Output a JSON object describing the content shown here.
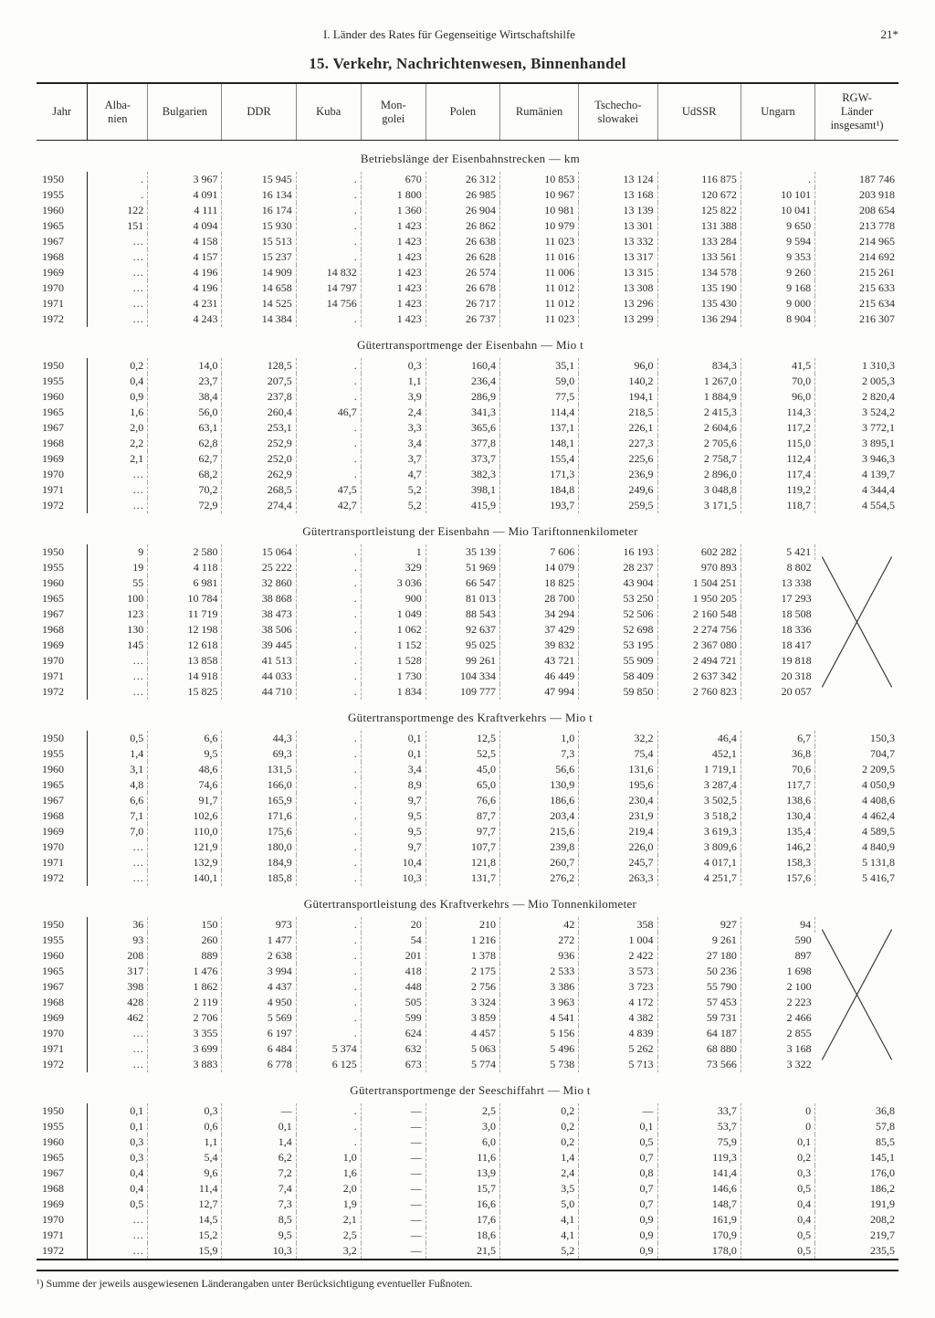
{
  "page_header_center": "I. Länder des Rates für Gegenseitige Wirtschaftshilfe",
  "page_number": "21*",
  "title": "15. Verkehr, Nachrichtenwesen, Binnenhandel",
  "columns": [
    "Jahr",
    "Alba-\nnien",
    "Bulgarien",
    "DDR",
    "Kuba",
    "Mon-\ngolei",
    "Polen",
    "Rumänien",
    "Tschecho-\nslowakei",
    "UdSSR",
    "Ungarn",
    "RGW-\nLänder\ninsgesamt¹)"
  ],
  "col_widths_pct": [
    5.5,
    6.5,
    8,
    8,
    7,
    7,
    8,
    8.5,
    8.5,
    9,
    8,
    9
  ],
  "years": [
    "1950",
    "1955",
    "1960",
    "1965",
    "1967",
    "1968",
    "1969",
    "1970",
    "1971",
    "1972"
  ],
  "footnote": "¹) Summe der jeweils ausgewiesenen Länderangaben unter Berücksichtigung eventueller Fußnoten.",
  "sections": [
    {
      "title": "Betriebslänge der Eisenbahnstrecken — km",
      "last_col_x": false,
      "rows": [
        [
          ".",
          "3 967",
          "15 945",
          ".",
          "670",
          "26 312",
          "10 853",
          "13 124",
          "116 875",
          ".",
          "187 746"
        ],
        [
          ".",
          "4 091",
          "16 134",
          ".",
          "1 800",
          "26 985",
          "10 967",
          "13 168",
          "120 672",
          "10 101",
          "203 918"
        ],
        [
          "122",
          "4 111",
          "16 174",
          ".",
          "1 360",
          "26 904",
          "10 981",
          "13 139",
          "125 822",
          "10 041",
          "208 654"
        ],
        [
          "151",
          "4 094",
          "15 930",
          ".",
          "1 423",
          "26 862",
          "10 979",
          "13 301",
          "131 388",
          "9 650",
          "213 778"
        ],
        [
          "…",
          "4 158",
          "15 513",
          ".",
          "1 423",
          "26 638",
          "11 023",
          "13 332",
          "133 284",
          "9 594",
          "214 965"
        ],
        [
          "…",
          "4 157",
          "15 237",
          ".",
          "1 423",
          "26 628",
          "11 016",
          "13 317",
          "133 561",
          "9 353",
          "214 692"
        ],
        [
          "…",
          "4 196",
          "14 909",
          "14 832",
          "1 423",
          "26 574",
          "11 006",
          "13 315",
          "134 578",
          "9 260",
          "215 261"
        ],
        [
          "…",
          "4 196",
          "14 658",
          "14 797",
          "1 423",
          "26 678",
          "11 012",
          "13 308",
          "135 190",
          "9 168",
          "215 633"
        ],
        [
          "…",
          "4 231",
          "14 525",
          "14 756",
          "1 423",
          "26 717",
          "11 012",
          "13 296",
          "135 430",
          "9 000",
          "215 634"
        ],
        [
          "…",
          "4 243",
          "14 384",
          ".",
          "1 423",
          "26 737",
          "11 023",
          "13 299",
          "136 294",
          "8 904",
          "216 307"
        ]
      ]
    },
    {
      "title": "Gütertransportmenge der Eisenbahn — Mio t",
      "last_col_x": false,
      "rows": [
        [
          "0,2",
          "14,0",
          "128,5",
          ".",
          "0,3",
          "160,4",
          "35,1",
          "96,0",
          "834,3",
          "41,5",
          "1 310,3"
        ],
        [
          "0,4",
          "23,7",
          "207,5",
          ".",
          "1,1",
          "236,4",
          "59,0",
          "140,2",
          "1 267,0",
          "70,0",
          "2 005,3"
        ],
        [
          "0,9",
          "38,4",
          "237,8",
          ".",
          "3,9",
          "286,9",
          "77,5",
          "194,1",
          "1 884,9",
          "96,0",
          "2 820,4"
        ],
        [
          "1,6",
          "56,0",
          "260,4",
          "46,7",
          "2,4",
          "341,3",
          "114,4",
          "218,5",
          "2 415,3",
          "114,3",
          "3 524,2"
        ],
        [
          "2,0",
          "63,1",
          "253,1",
          ".",
          "3,3",
          "365,6",
          "137,1",
          "226,1",
          "2 604,6",
          "117,2",
          "3 772,1"
        ],
        [
          "2,2",
          "62,8",
          "252,9",
          ".",
          "3,4",
          "377,8",
          "148,1",
          "227,3",
          "2 705,6",
          "115,0",
          "3 895,1"
        ],
        [
          "2,1",
          "62,7",
          "252,0",
          ".",
          "3,7",
          "373,7",
          "155,4",
          "225,6",
          "2 758,7",
          "112,4",
          "3 946,3"
        ],
        [
          "…",
          "68,2",
          "262,9",
          ".",
          "4,7",
          "382,3",
          "171,3",
          "236,9",
          "2 896,0",
          "117,4",
          "4 139,7"
        ],
        [
          "…",
          "70,2",
          "268,5",
          "47,5",
          "5,2",
          "398,1",
          "184,8",
          "249,6",
          "3 048,8",
          "119,2",
          "4 344,4"
        ],
        [
          "…",
          "72,9",
          "274,4",
          "42,7",
          "5,2",
          "415,9",
          "193,7",
          "259,5",
          "3 171,5",
          "118,7",
          "4 554,5"
        ]
      ]
    },
    {
      "title": "Gütertransportleistung der Eisenbahn — Mio Tariftonnenkilometer",
      "last_col_x": true,
      "rows": [
        [
          "9",
          "2 580",
          "15 064",
          ".",
          "1",
          "35 139",
          "7 606",
          "16 193",
          "602 282",
          "5 421",
          ""
        ],
        [
          "19",
          "4 118",
          "25 222",
          ".",
          "329",
          "51 969",
          "14 079",
          "28 237",
          "970 893",
          "8 802",
          ""
        ],
        [
          "55",
          "6 981",
          "32 860",
          ".",
          "3 036",
          "66 547",
          "18 825",
          "43 904",
          "1 504 251",
          "13 338",
          ""
        ],
        [
          "100",
          "10 784",
          "38 868",
          ".",
          "900",
          "81 013",
          "28 700",
          "53 250",
          "1 950 205",
          "17 293",
          ""
        ],
        [
          "123",
          "11 719",
          "38 473",
          ".",
          "1 049",
          "88 543",
          "34 294",
          "52 506",
          "2 160 548",
          "18 508",
          ""
        ],
        [
          "130",
          "12 198",
          "38 506",
          ".",
          "1 062",
          "92 637",
          "37 429",
          "52 698",
          "2 274 756",
          "18 336",
          ""
        ],
        [
          "145",
          "12 618",
          "39 445",
          ".",
          "1 152",
          "95 025",
          "39 832",
          "53 195",
          "2 367 080",
          "18 417",
          ""
        ],
        [
          "…",
          "13 858",
          "41 513",
          ".",
          "1 528",
          "99 261",
          "43 721",
          "55 909",
          "2 494 721",
          "19 818",
          ""
        ],
        [
          "…",
          "14 918",
          "44 033",
          ".",
          "1 730",
          "104 334",
          "46 449",
          "58 409",
          "2 637 342",
          "20 318",
          ""
        ],
        [
          "…",
          "15 825",
          "44 710",
          ".",
          "1 834",
          "109 777",
          "47 994",
          "59 850",
          "2 760 823",
          "20 057",
          ""
        ]
      ]
    },
    {
      "title": "Gütertransportmenge des Kraftverkehrs — Mio t",
      "last_col_x": false,
      "rows": [
        [
          "0,5",
          "6,6",
          "44,3",
          ".",
          "0,1",
          "12,5",
          "1,0",
          "32,2",
          "46,4",
          "6,7",
          "150,3"
        ],
        [
          "1,4",
          "9,5",
          "69,3",
          ".",
          "0,1",
          "52,5",
          "7,3",
          "75,4",
          "452,1",
          "36,8",
          "704,7"
        ],
        [
          "3,1",
          "48,6",
          "131,5",
          ".",
          "3,4",
          "45,0",
          "56,6",
          "131,6",
          "1 719,1",
          "70,6",
          "2 209,5"
        ],
        [
          "4,8",
          "74,6",
          "166,0",
          ".",
          "8,9",
          "65,0",
          "130,9",
          "195,6",
          "3 287,4",
          "117,7",
          "4 050,9"
        ],
        [
          "6,6",
          "91,7",
          "165,9",
          ".",
          "9,7",
          "76,6",
          "186,6",
          "230,4",
          "3 502,5",
          "138,6",
          "4 408,6"
        ],
        [
          "7,1",
          "102,6",
          "171,6",
          ".",
          "9,5",
          "87,7",
          "203,4",
          "231,9",
          "3 518,2",
          "130,4",
          "4 462,4"
        ],
        [
          "7,0",
          "110,0",
          "175,6",
          ".",
          "9,5",
          "97,7",
          "215,6",
          "219,4",
          "3 619,3",
          "135,4",
          "4 589,5"
        ],
        [
          "…",
          "121,9",
          "180,0",
          ".",
          "9,7",
          "107,7",
          "239,8",
          "226,0",
          "3 809,6",
          "146,2",
          "4 840,9"
        ],
        [
          "…",
          "132,9",
          "184,9",
          ".",
          "10,4",
          "121,8",
          "260,7",
          "245,7",
          "4 017,1",
          "158,3",
          "5 131,8"
        ],
        [
          "…",
          "140,1",
          "185,8",
          ".",
          "10,3",
          "131,7",
          "276,2",
          "263,3",
          "4 251,7",
          "157,6",
          "5 416,7"
        ]
      ]
    },
    {
      "title": "Gütertransportleistung des Kraftverkehrs — Mio Tonnenkilometer",
      "last_col_x": true,
      "rows": [
        [
          "36",
          "150",
          "973",
          ".",
          "20",
          "210",
          "42",
          "358",
          "927",
          "94",
          ""
        ],
        [
          "93",
          "260",
          "1 477",
          ".",
          "54",
          "1 216",
          "272",
          "1 004",
          "9 261",
          "590",
          ""
        ],
        [
          "208",
          "889",
          "2 638",
          ".",
          "201",
          "1 378",
          "936",
          "2 422",
          "27 180",
          "897",
          ""
        ],
        [
          "317",
          "1 476",
          "3 994",
          ".",
          "418",
          "2 175",
          "2 533",
          "3 573",
          "50 236",
          "1 698",
          ""
        ],
        [
          "398",
          "1 862",
          "4 437",
          ".",
          "448",
          "2 756",
          "3 386",
          "3 723",
          "55 790",
          "2 100",
          ""
        ],
        [
          "428",
          "2 119",
          "4 950",
          ".",
          "505",
          "3 324",
          "3 963",
          "4 172",
          "57 453",
          "2 223",
          ""
        ],
        [
          "462",
          "2 706",
          "5 569",
          ".",
          "599",
          "3 859",
          "4 541",
          "4 382",
          "59 731",
          "2 466",
          ""
        ],
        [
          "…",
          "3 355",
          "6 197",
          ".",
          "624",
          "4 457",
          "5 156",
          "4 839",
          "64 187",
          "2 855",
          ""
        ],
        [
          "…",
          "3 699",
          "6 484",
          "5 374",
          "632",
          "5 063",
          "5 496",
          "5 262",
          "68 880",
          "3 168",
          ""
        ],
        [
          "…",
          "3 883",
          "6 778",
          "6 125",
          "673",
          "5 774",
          "5 738",
          "5 713",
          "73 566",
          "3 322",
          ""
        ]
      ]
    },
    {
      "title": "Gütertransportmenge der Seeschiffahrt — Mio t",
      "last_col_x": false,
      "rows": [
        [
          "0,1",
          "0,3",
          "—",
          ".",
          "—",
          "2,5",
          "0,2",
          "—",
          "33,7",
          "0",
          "36,8"
        ],
        [
          "0,1",
          "0,6",
          "0,1",
          ".",
          "—",
          "3,0",
          "0,2",
          "0,1",
          "53,7",
          "0",
          "57,8"
        ],
        [
          "0,3",
          "1,1",
          "1,4",
          ".",
          "—",
          "6,0",
          "0,2",
          "0,5",
          "75,9",
          "0,1",
          "85,5"
        ],
        [
          "0,3",
          "5,4",
          "6,2",
          "1,0",
          "—",
          "11,6",
          "1,4",
          "0,7",
          "119,3",
          "0,2",
          "145,1"
        ],
        [
          "0,4",
          "9,6",
          "7,2",
          "1,6",
          "—",
          "13,9",
          "2,4",
          "0,8",
          "141,4",
          "0,3",
          "176,0"
        ],
        [
          "0,4",
          "11,4",
          "7,4",
          "2,0",
          "—",
          "15,7",
          "3,5",
          "0,7",
          "146,6",
          "0,5",
          "186,2"
        ],
        [
          "0,5",
          "12,7",
          "7,3",
          "1,9",
          "—",
          "16,6",
          "5,0",
          "0,7",
          "148,7",
          "0,4",
          "191,9"
        ],
        [
          "…",
          "14,5",
          "8,5",
          "2,1",
          "—",
          "17,6",
          "4,1",
          "0,9",
          "161,9",
          "0,4",
          "208,2"
        ],
        [
          "…",
          "15,2",
          "9,5",
          "2,5",
          "—",
          "18,6",
          "4,1",
          "0,9",
          "170,9",
          "0,5",
          "219,7"
        ],
        [
          "…",
          "15,9",
          "10,3",
          "3,2",
          "—",
          "21,5",
          "5,2",
          "0,9",
          "178,0",
          "0,5",
          "235,5"
        ]
      ]
    }
  ]
}
